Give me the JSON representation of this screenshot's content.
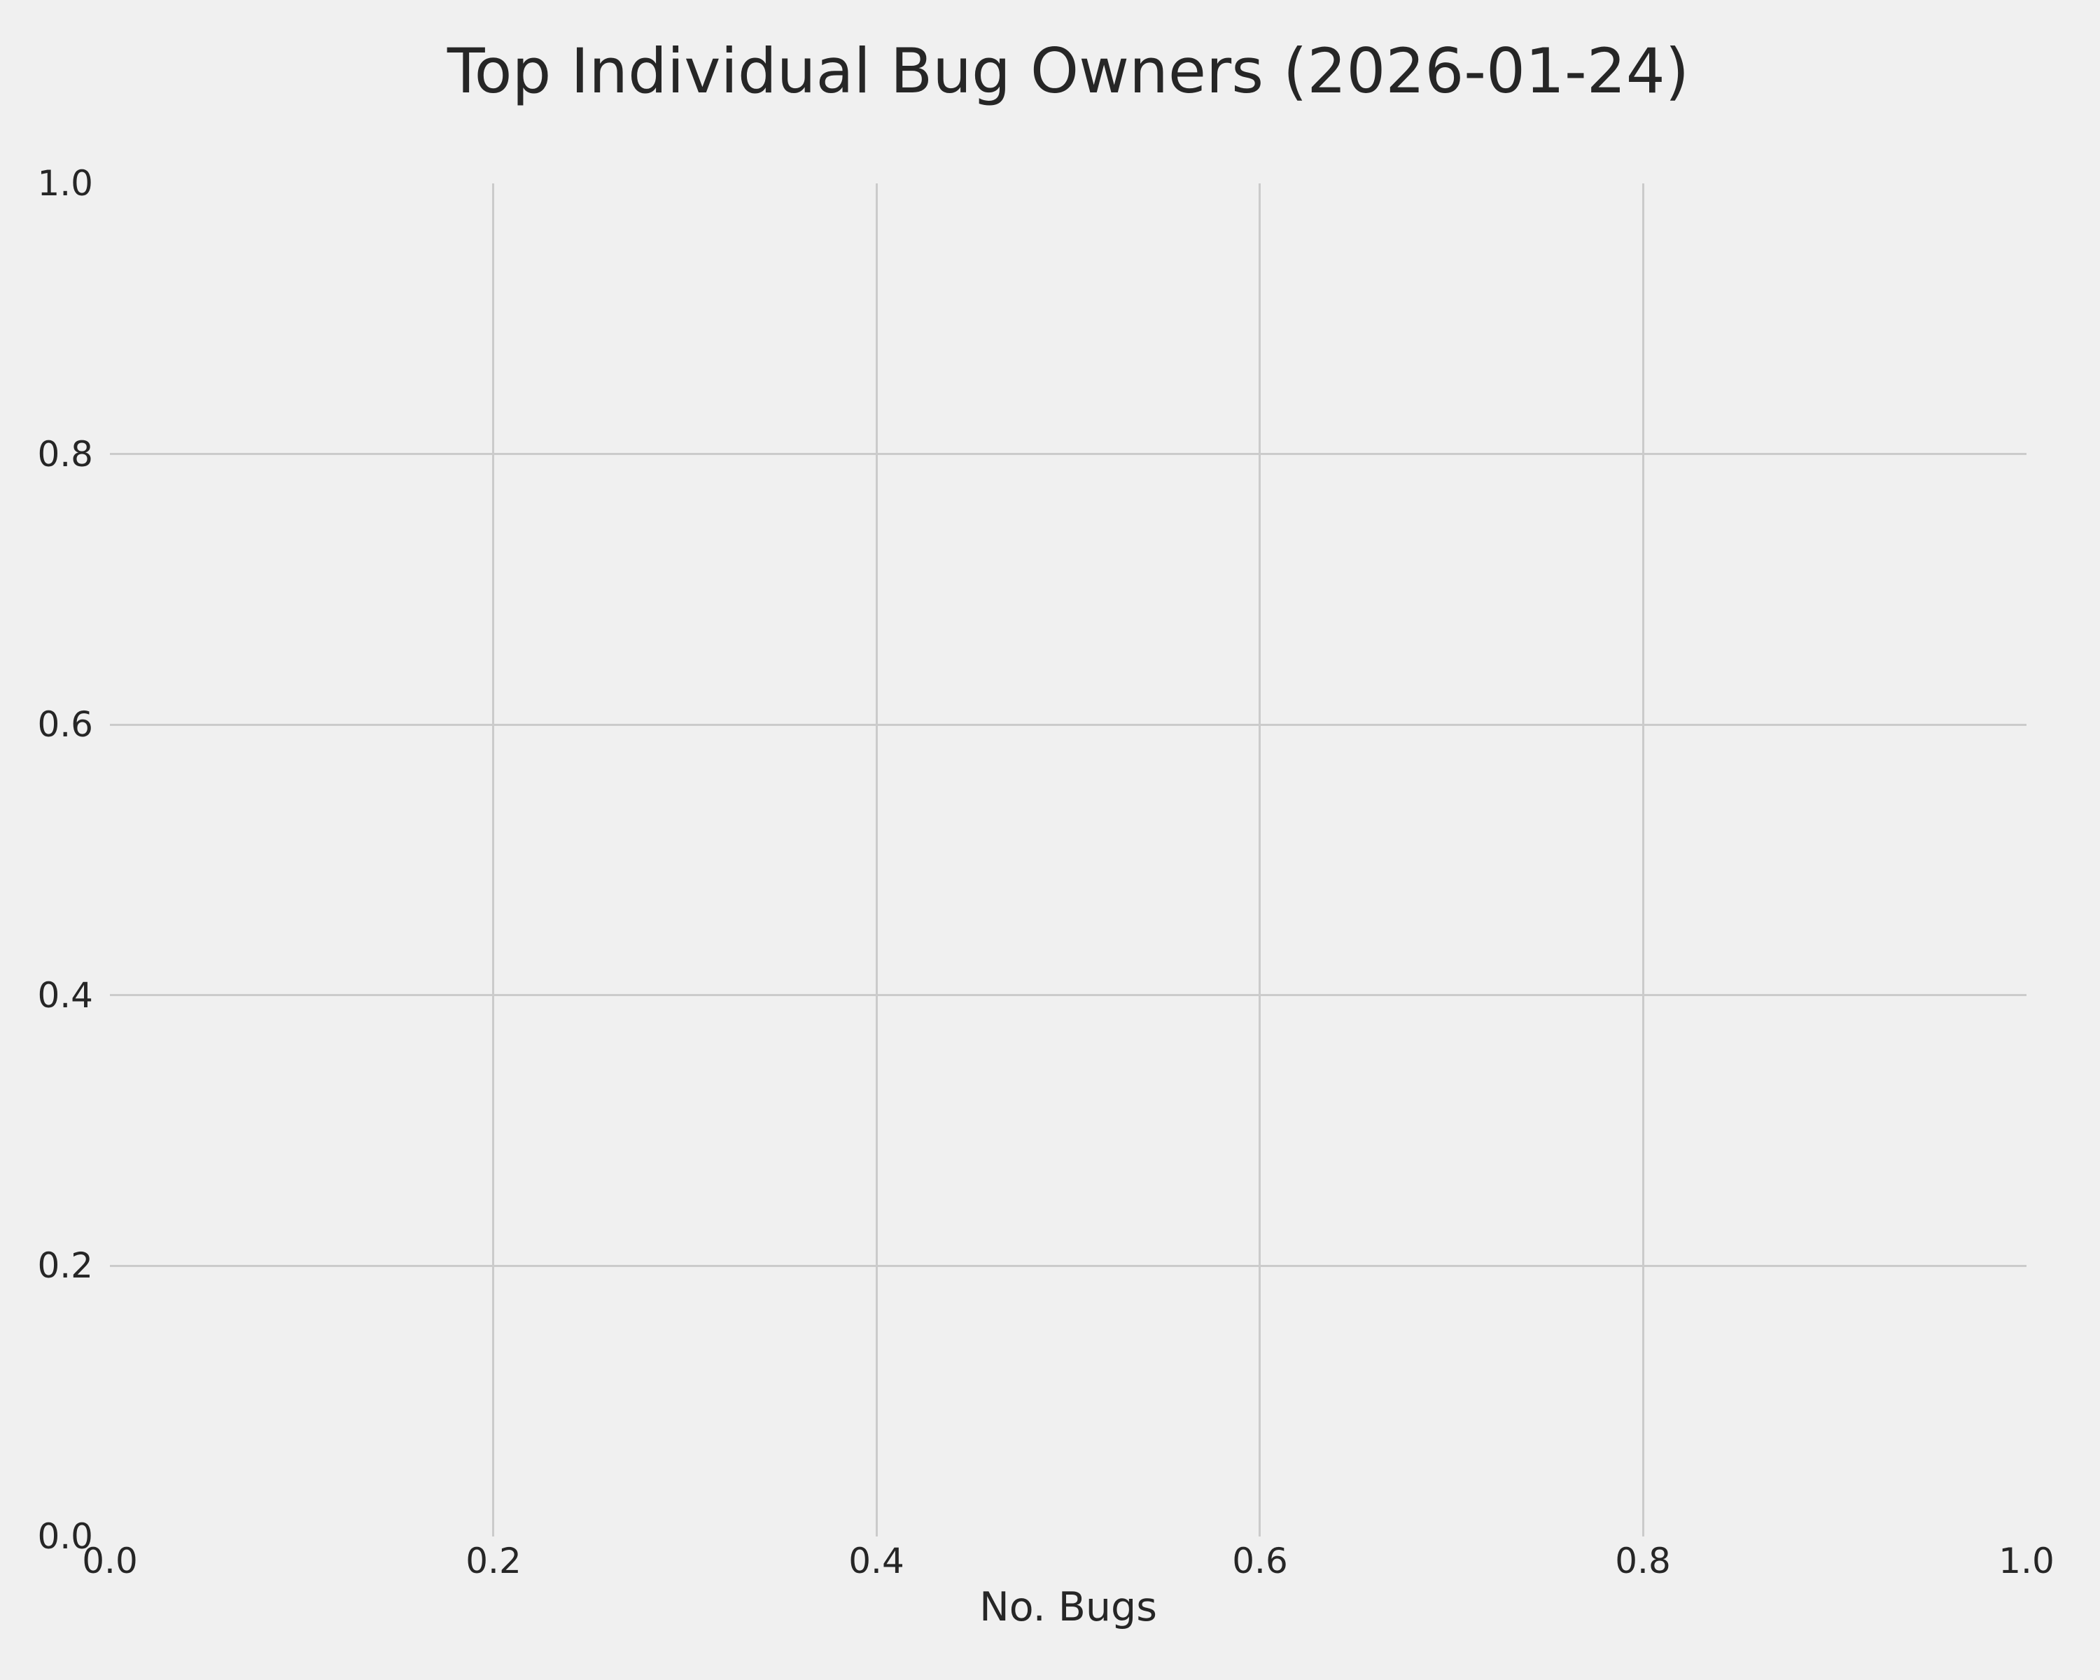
{
  "colors": {
    "background": "#f0f0f0",
    "grid": "#cbcbcb",
    "text": "#262626"
  },
  "chart_data": {
    "type": "bar",
    "title": "Top Individual Bug Owners (2026-01-24)",
    "xlabel": "No. Bugs",
    "ylabel": "",
    "categories": [],
    "values": [],
    "series": [],
    "xlim": [
      0.0,
      1.0
    ],
    "ylim": [
      0.0,
      1.0
    ],
    "x_ticks": [
      "0.0",
      "0.2",
      "0.4",
      "0.6",
      "0.8",
      "1.0"
    ],
    "y_ticks": [
      "0.0",
      "0.2",
      "0.4",
      "0.6",
      "0.8",
      "1.0"
    ],
    "grid": true,
    "legend": false
  }
}
